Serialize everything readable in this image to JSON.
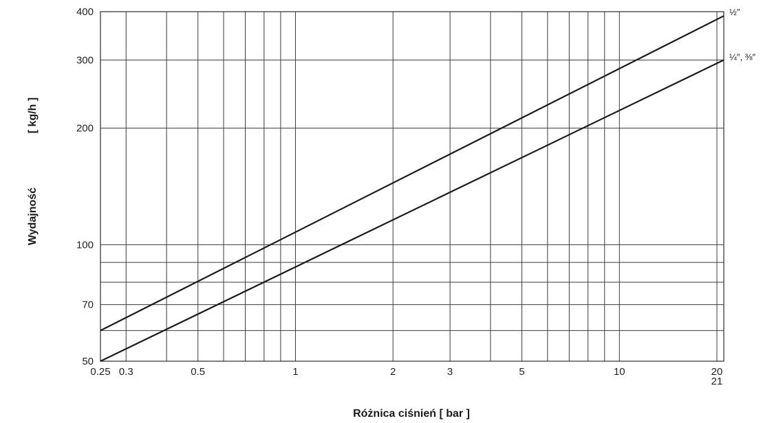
{
  "chart_data": {
    "type": "line",
    "title": "",
    "xlabel": "Różnica ciśnień [ bar ]",
    "ylabel_left": "Wydajność",
    "ylabel_right": "[ kg/h ]",
    "x_scale": "log",
    "y_scale": "log",
    "xlim": [
      0.25,
      21
    ],
    "ylim": [
      50,
      400
    ],
    "grid": true,
    "x_gridlines": [
      0.3,
      0.4,
      0.5,
      0.6,
      0.7,
      0.8,
      0.9,
      1,
      2,
      3,
      4,
      5,
      6,
      7,
      8,
      9,
      10,
      20
    ],
    "y_gridlines": [
      60,
      70,
      80,
      90,
      100,
      200,
      300
    ],
    "x_ticks": [
      {
        "value": 0.25,
        "label": "0.25"
      },
      {
        "value": 0.3,
        "label": "0.3"
      },
      {
        "value": 0.5,
        "label": "0.5"
      },
      {
        "value": 1,
        "label": "1"
      },
      {
        "value": 2,
        "label": "2"
      },
      {
        "value": 3,
        "label": "3"
      },
      {
        "value": 5,
        "label": "5"
      },
      {
        "value": 10,
        "label": "10"
      },
      {
        "value": 20,
        "label": "20"
      },
      {
        "value": 21,
        "label": "21"
      }
    ],
    "y_ticks": [
      {
        "value": 50,
        "label": "50"
      },
      {
        "value": 70,
        "label": "70"
      },
      {
        "value": 100,
        "label": "100"
      },
      {
        "value": 200,
        "label": "200"
      },
      {
        "value": 300,
        "label": "300"
      },
      {
        "value": 400,
        "label": "400"
      }
    ],
    "series": [
      {
        "name": "½″",
        "x": [
          0.25,
          21
        ],
        "y": [
          60,
          390
        ]
      },
      {
        "name": "¼″, ⅜″",
        "x": [
          0.25,
          21
        ],
        "y": [
          50,
          300
        ]
      }
    ],
    "colors": {
      "line": "#1a1a1a",
      "grid": "#3a3a3a",
      "text": "#222222"
    }
  }
}
